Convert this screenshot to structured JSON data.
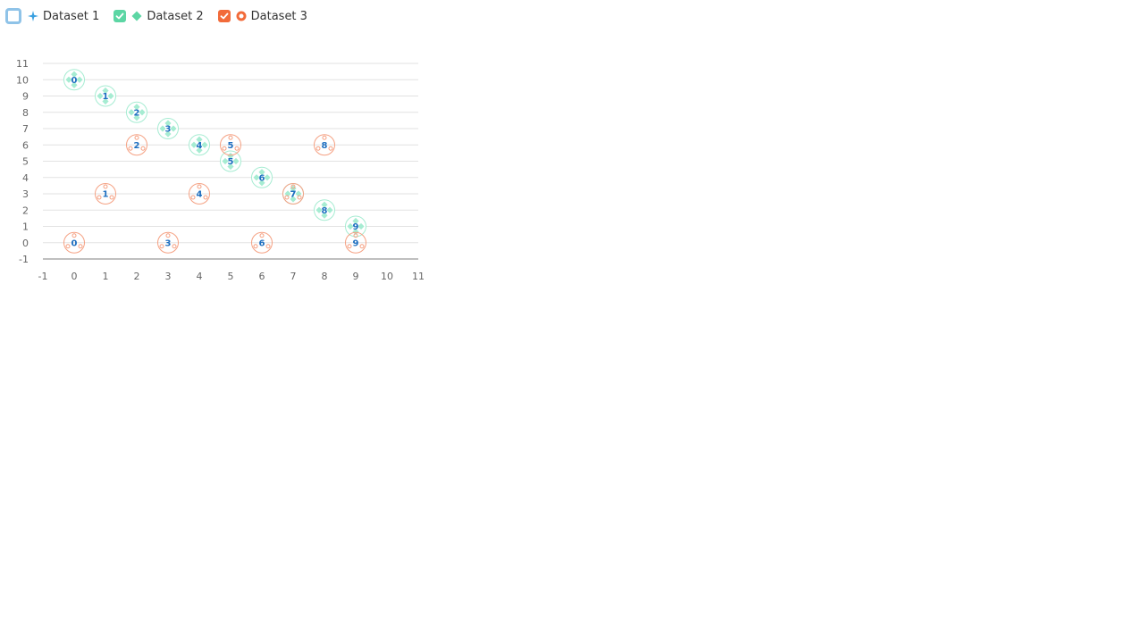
{
  "legend": {
    "items": [
      {
        "label": "Dataset 1",
        "checked": false,
        "color": "#3aa0e0",
        "symbol": "star"
      },
      {
        "label": "Dataset 2",
        "checked": true,
        "color": "#5cd6a4",
        "symbol": "diamond"
      },
      {
        "label": "Dataset 3",
        "checked": true,
        "color": "#f26b3a",
        "symbol": "circle"
      }
    ]
  },
  "chart_data": {
    "type": "scatter",
    "title": "",
    "xlabel": "",
    "ylabel": "",
    "xlim": [
      -1,
      11
    ],
    "ylim": [
      -1,
      11
    ],
    "x_ticks": [
      "-1",
      "0",
      "1",
      "2",
      "3",
      "4",
      "5",
      "6",
      "7",
      "8",
      "9",
      "10",
      "11"
    ],
    "y_ticks": [
      "-1",
      "0",
      "1",
      "2",
      "3",
      "4",
      "5",
      "6",
      "7",
      "8",
      "9",
      "10",
      "11"
    ],
    "grid": "horizontal",
    "legend_position": "top-left",
    "series": [
      {
        "name": "Dataset 2",
        "color": "#5cd6a4",
        "points": [
          {
            "x": 0,
            "y": 10,
            "label": "0"
          },
          {
            "x": 1,
            "y": 9,
            "label": "1"
          },
          {
            "x": 2,
            "y": 8,
            "label": "2"
          },
          {
            "x": 3,
            "y": 7,
            "label": "3"
          },
          {
            "x": 4,
            "y": 6,
            "label": "4"
          },
          {
            "x": 5,
            "y": 5,
            "label": "5"
          },
          {
            "x": 6,
            "y": 4,
            "label": "6"
          },
          {
            "x": 7,
            "y": 3,
            "label": "7"
          },
          {
            "x": 8,
            "y": 2,
            "label": "8"
          },
          {
            "x": 9,
            "y": 1,
            "label": "9"
          }
        ]
      },
      {
        "name": "Dataset 3",
        "color": "#f26b3a",
        "points": [
          {
            "x": 0,
            "y": 0,
            "label": "0"
          },
          {
            "x": 1,
            "y": 3,
            "label": "1"
          },
          {
            "x": 2,
            "y": 6,
            "label": "2"
          },
          {
            "x": 3,
            "y": 0,
            "label": "3"
          },
          {
            "x": 4,
            "y": 3,
            "label": "4"
          },
          {
            "x": 5,
            "y": 6,
            "label": "5"
          },
          {
            "x": 6,
            "y": 0,
            "label": "6"
          },
          {
            "x": 7,
            "y": 3,
            "label": "7"
          },
          {
            "x": 8,
            "y": 6,
            "label": "8"
          },
          {
            "x": 9,
            "y": 0,
            "label": "9"
          }
        ]
      }
    ]
  }
}
